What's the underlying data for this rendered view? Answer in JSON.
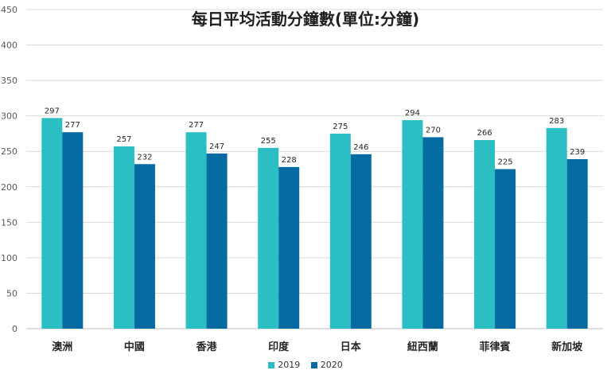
{
  "chart_data": {
    "type": "bar",
    "title": "每日平均活動分鐘數(單位:分鐘)",
    "categories": [
      "澳洲",
      "中國",
      "香港",
      "印度",
      "日本",
      "紐西蘭",
      "菲律賓",
      "新加坡"
    ],
    "series": [
      {
        "name": "2019",
        "color": "#2bbfc4",
        "values": [
          297,
          257,
          277,
          255,
          275,
          294,
          266,
          283
        ]
      },
      {
        "name": "2020",
        "color": "#066aa3",
        "values": [
          277,
          232,
          247,
          228,
          246,
          270,
          225,
          239
        ]
      }
    ],
    "ylim": [
      0,
      450
    ],
    "yticks": [
      0,
      50,
      100,
      150,
      200,
      250,
      300,
      350,
      400,
      450
    ],
    "grid": true,
    "data_labels": true,
    "legend": "bottom-center"
  }
}
